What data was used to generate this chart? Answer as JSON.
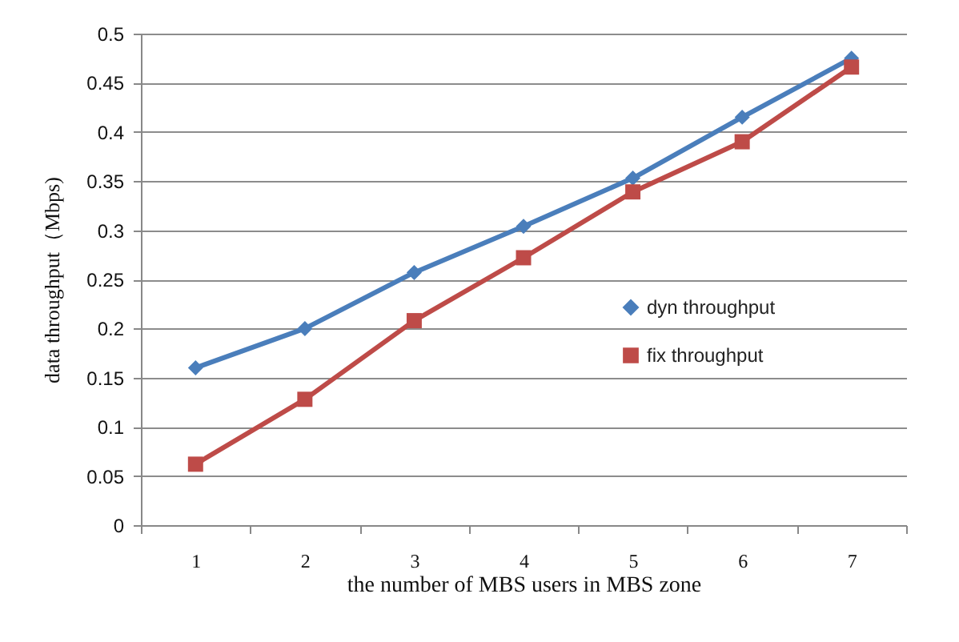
{
  "chart_data": {
    "type": "line",
    "xlabel": "the number of MBS users in MBS zone",
    "ylabel": "data throughput（Mbps)",
    "categories": [
      "1",
      "2",
      "3",
      "4",
      "5",
      "6",
      "7"
    ],
    "series": [
      {
        "name": "dyn throughput",
        "color": "#4a7ebb",
        "marker": "diamond",
        "values": [
          0.16,
          0.2,
          0.257,
          0.304,
          0.353,
          0.415,
          0.475
        ]
      },
      {
        "name": "fix throughput",
        "color": "#be4b48",
        "marker": "square",
        "values": [
          0.062,
          0.128,
          0.208,
          0.272,
          0.339,
          0.39,
          0.466
        ]
      }
    ],
    "ylim": [
      0,
      0.5
    ],
    "yticks": [
      0,
      0.05,
      0.1,
      0.15,
      0.2,
      0.25,
      0.3,
      0.35,
      0.4,
      0.45,
      0.5
    ],
    "grid": "y",
    "legend": "right"
  }
}
